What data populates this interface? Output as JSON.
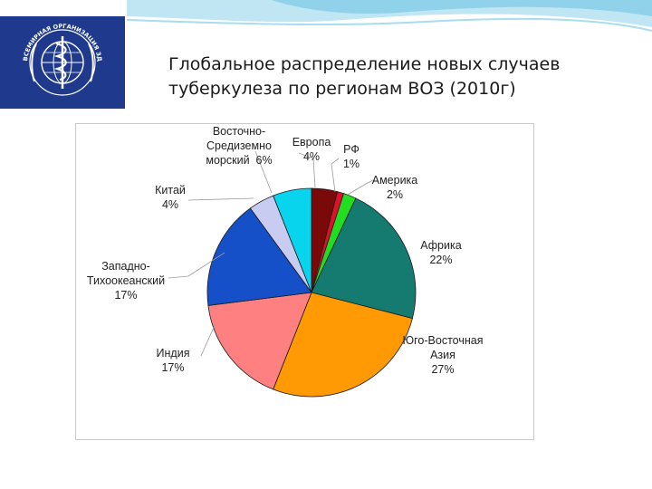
{
  "title": "Глобальное распределение новых случаев туберкулеза по регионам ВОЗ (2010г)",
  "logo": {
    "text": "ВСЕМИРНАЯ ОРГАНИЗАЦИЯ ЗДРАВООХРАНЕНИЯ",
    "icon": "who-emblem-icon",
    "color": "#1f3a8c"
  },
  "chart_data": {
    "type": "pie",
    "title": "",
    "slices": [
      {
        "label": [
          "Европа",
          "4%"
        ],
        "value": 4,
        "color": "#7a0a0a"
      },
      {
        "label": [
          "РФ",
          "1%"
        ],
        "value": 1,
        "color": "#e0102a"
      },
      {
        "label": [
          "Америка",
          "2%"
        ],
        "value": 2,
        "color": "#22dd22"
      },
      {
        "label": [
          "Африка",
          "22%"
        ],
        "value": 22,
        "color": "#157a70"
      },
      {
        "label": [
          "Юго-Восточная",
          "Азия",
          "27%"
        ],
        "value": 27,
        "color": "#ff9a05"
      },
      {
        "label": [
          "Индия",
          "17%"
        ],
        "value": 17,
        "color": "#ff8080"
      },
      {
        "label": [
          "Западно-",
          "Тихоокеанский",
          "17%"
        ],
        "value": 17,
        "color": "#1550c8"
      },
      {
        "label": [
          "Китай",
          "4%"
        ],
        "value": 4,
        "color": "#c8ccf0"
      },
      {
        "label": [
          "Восточно-",
          "Средиземно",
          "морский  6%"
        ],
        "value": 6,
        "color": "#08d4ee"
      }
    ]
  }
}
